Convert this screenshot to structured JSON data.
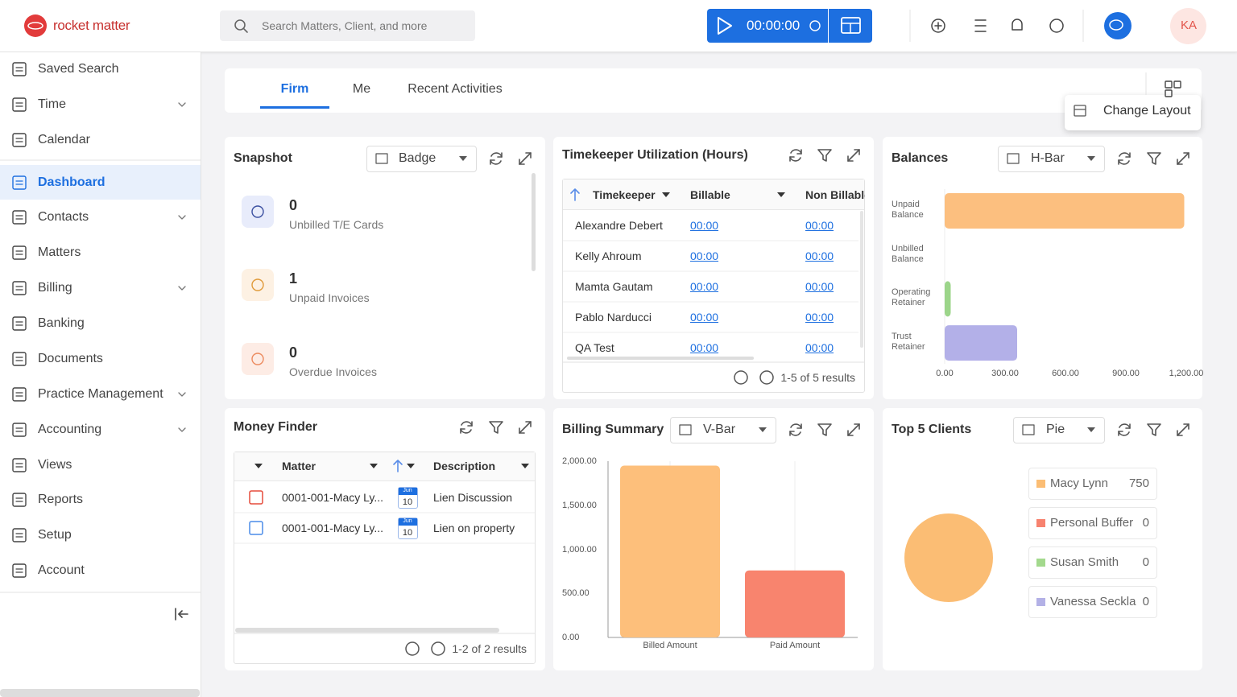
{
  "header": {
    "brand": "rocket matter",
    "search_placeholder": "Search Matters, Client, and more",
    "timer": "00:00:00",
    "avatar": "KA"
  },
  "sidebar": {
    "items": [
      "Saved Search",
      "Time",
      "Calendar",
      "Dashboard",
      "Contacts",
      "Matters",
      "Billing",
      "Banking",
      "Documents",
      "Practice Management",
      "Accounting",
      "Views",
      "Reports",
      "Setup",
      "Account"
    ]
  },
  "tabs": [
    "Firm",
    "Me",
    "Recent Activities"
  ],
  "change_layout": "Change Layout",
  "snapshot": {
    "title": "Snapshot",
    "view": "Badge",
    "items": [
      {
        "count": 0,
        "label": "Unbilled T/E Cards"
      },
      {
        "count": 1,
        "label": "Unpaid Invoices"
      },
      {
        "count": 0,
        "label": "Overdue Invoices"
      }
    ]
  },
  "timekeeper": {
    "title": "Timekeeper Utilization (Hours)",
    "columns": [
      "Timekeeper",
      "Billable",
      "Non Billable"
    ],
    "rows": [
      [
        "Alexandre Debert",
        "00:00",
        "00:00"
      ],
      [
        "Kelly Ahroum",
        "00:00",
        "00:00"
      ],
      [
        "Mamta Gautam",
        "00:00",
        "00:00"
      ],
      [
        "Pablo Narducci",
        "00:00",
        "00:00"
      ],
      [
        "QA Test",
        "00:00",
        "00:00"
      ]
    ],
    "pagination": "1-5 of 5 results"
  },
  "money_finder": {
    "title": "Money Finder",
    "columns": [
      "Matter",
      "Description"
    ],
    "rows": [
      {
        "matter": "0001-001-Macy Ly...",
        "month": "Jun",
        "day": 10,
        "description": "Lien Discussion"
      },
      {
        "matter": "0001-001-Macy Ly...",
        "month": "Jun",
        "day": 10,
        "description": "Lien on property"
      }
    ],
    "pagination": "1-2 of 2 results"
  },
  "balances": {
    "title": "Balances",
    "view": "H-Bar",
    "chart": {
      "type": "hbar",
      "categories": [
        "Unpaid Balance",
        "Unbilled Balance",
        "Operating Retainer",
        "Trust Retainer"
      ],
      "values": [
        1190,
        0,
        30,
        360
      ],
      "colors": [
        "#fcbf7f",
        "#fcbf7f",
        "#9cd58a",
        "#b3b0e8"
      ],
      "xlim": [
        0,
        1200
      ],
      "xticks": [
        {
          "value": 0,
          "label": "0.00"
        },
        {
          "value": 300,
          "label": "300.00"
        },
        {
          "value": 600,
          "label": "600.00"
        },
        {
          "value": 900,
          "label": "900.00"
        },
        {
          "value": 1200,
          "label": "1,200.00"
        }
      ]
    }
  },
  "billing_summary": {
    "title": "Billing Summary",
    "view": "V-Bar",
    "chart": {
      "type": "bar",
      "categories": [
        "Billed Amount",
        "Paid Amount"
      ],
      "values": [
        1950,
        760
      ],
      "colors": [
        "#fdbf7b",
        "#f8846e"
      ],
      "ylim": [
        0,
        2000
      ],
      "yticks": [
        {
          "value": 0,
          "label": "0.00"
        },
        {
          "value": 500,
          "label": "500.00"
        },
        {
          "value": 1000,
          "label": "1,000.00"
        },
        {
          "value": 1500,
          "label": "1,500.00"
        },
        {
          "value": 2000,
          "label": "2,000.00"
        }
      ]
    }
  },
  "top_clients": {
    "title": "Top 5 Clients",
    "view": "Pie",
    "chart": {
      "type": "pie",
      "categories": [
        "Macy Lynn",
        "Personal Buffer",
        "Susan Smith",
        "Vanessa Seckla"
      ],
      "values": [
        750,
        0,
        0,
        0
      ],
      "colors": [
        "#fbbd74",
        "#f7826f",
        "#a3d98d",
        "#b3b1e6"
      ]
    }
  }
}
